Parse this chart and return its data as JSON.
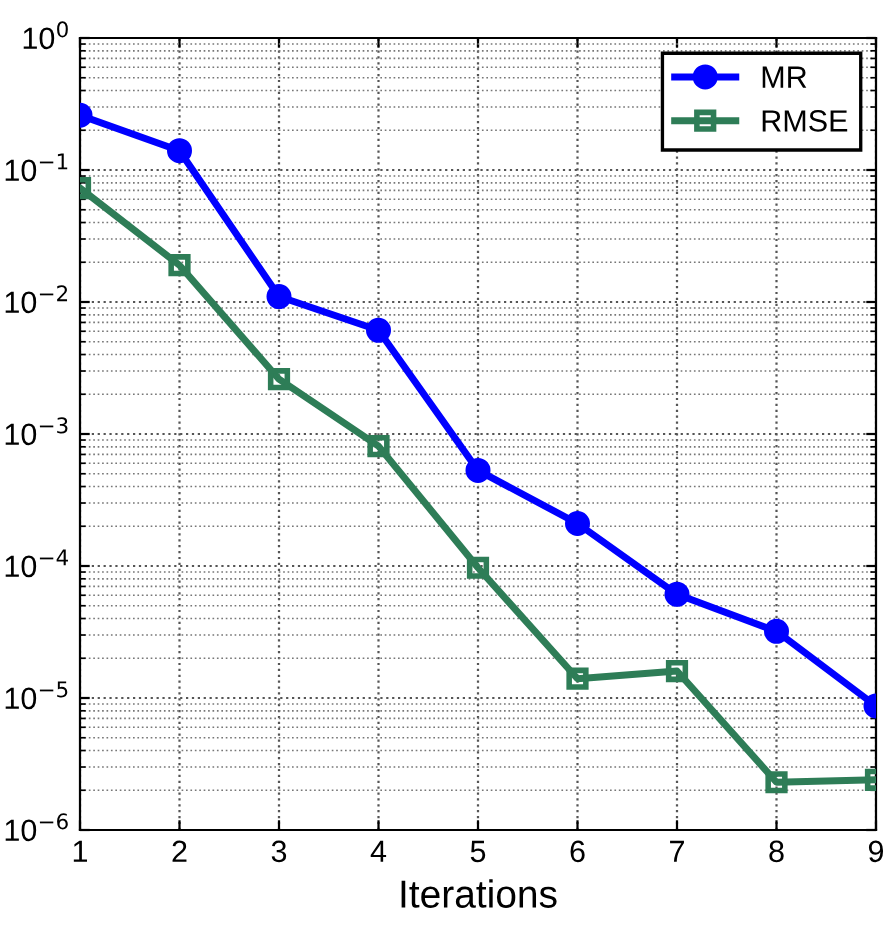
{
  "chart_data": {
    "type": "line",
    "xlabel": "Iterations",
    "x": [
      1,
      2,
      3,
      4,
      5,
      6,
      7,
      8,
      9
    ],
    "series": [
      {
        "name": "MR",
        "color": "#0000ff",
        "marker": "circle",
        "values": [
          0.26,
          0.14,
          0.011,
          0.0061,
          0.00053,
          0.00021,
          6.1e-05,
          3.2e-05,
          8.7e-06
        ]
      },
      {
        "name": "RMSE",
        "color": "#2e7d57",
        "marker": "square",
        "values": [
          0.073,
          0.019,
          0.0026,
          0.00081,
          9.7e-05,
          1.4e-05,
          1.6e-05,
          2.3e-06,
          2.4e-06
        ]
      }
    ],
    "log": "y",
    "xlim": [
      1,
      9
    ],
    "xticks": [
      1,
      2,
      3,
      4,
      5,
      6,
      7,
      8,
      9
    ],
    "ylim": [
      1e-06,
      1
    ],
    "yticks": [
      {
        "value": 1e-06,
        "label": "10$^{−6}$"
      },
      {
        "value": 1e-05,
        "label": "10$^{−5}$"
      },
      {
        "value": 0.0001,
        "label": "10$^{−4}$"
      },
      {
        "value": 0.001,
        "label": "10$^{−3}$"
      },
      {
        "value": 0.01,
        "label": "10$^{−2}$"
      },
      {
        "value": 0.1,
        "label": "10$^{−1}$"
      },
      {
        "value": 1,
        "label": "10$^{0}$"
      }
    ],
    "grid": true,
    "legend": "top right",
    "line_style": "solid"
  }
}
